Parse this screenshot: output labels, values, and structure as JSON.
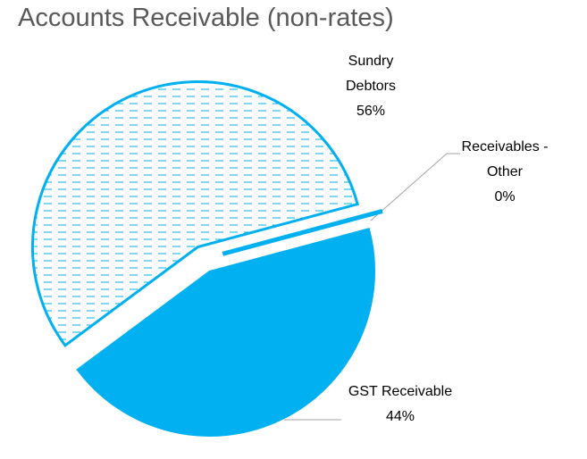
{
  "chart_data": {
    "type": "pie",
    "title": "Accounts Receivable (non-rates)",
    "categories": [
      "Sundry Debtors",
      "Receivables - Other",
      "GST Receivable"
    ],
    "values": [
      56,
      0,
      44
    ],
    "value_labels": [
      "56%",
      "0%",
      "44%"
    ],
    "colors": [
      "#00b0f0",
      "#00b0f0",
      "#00b0f0"
    ],
    "fill_styles": [
      "dashed",
      "solid",
      "solid"
    ]
  }
}
